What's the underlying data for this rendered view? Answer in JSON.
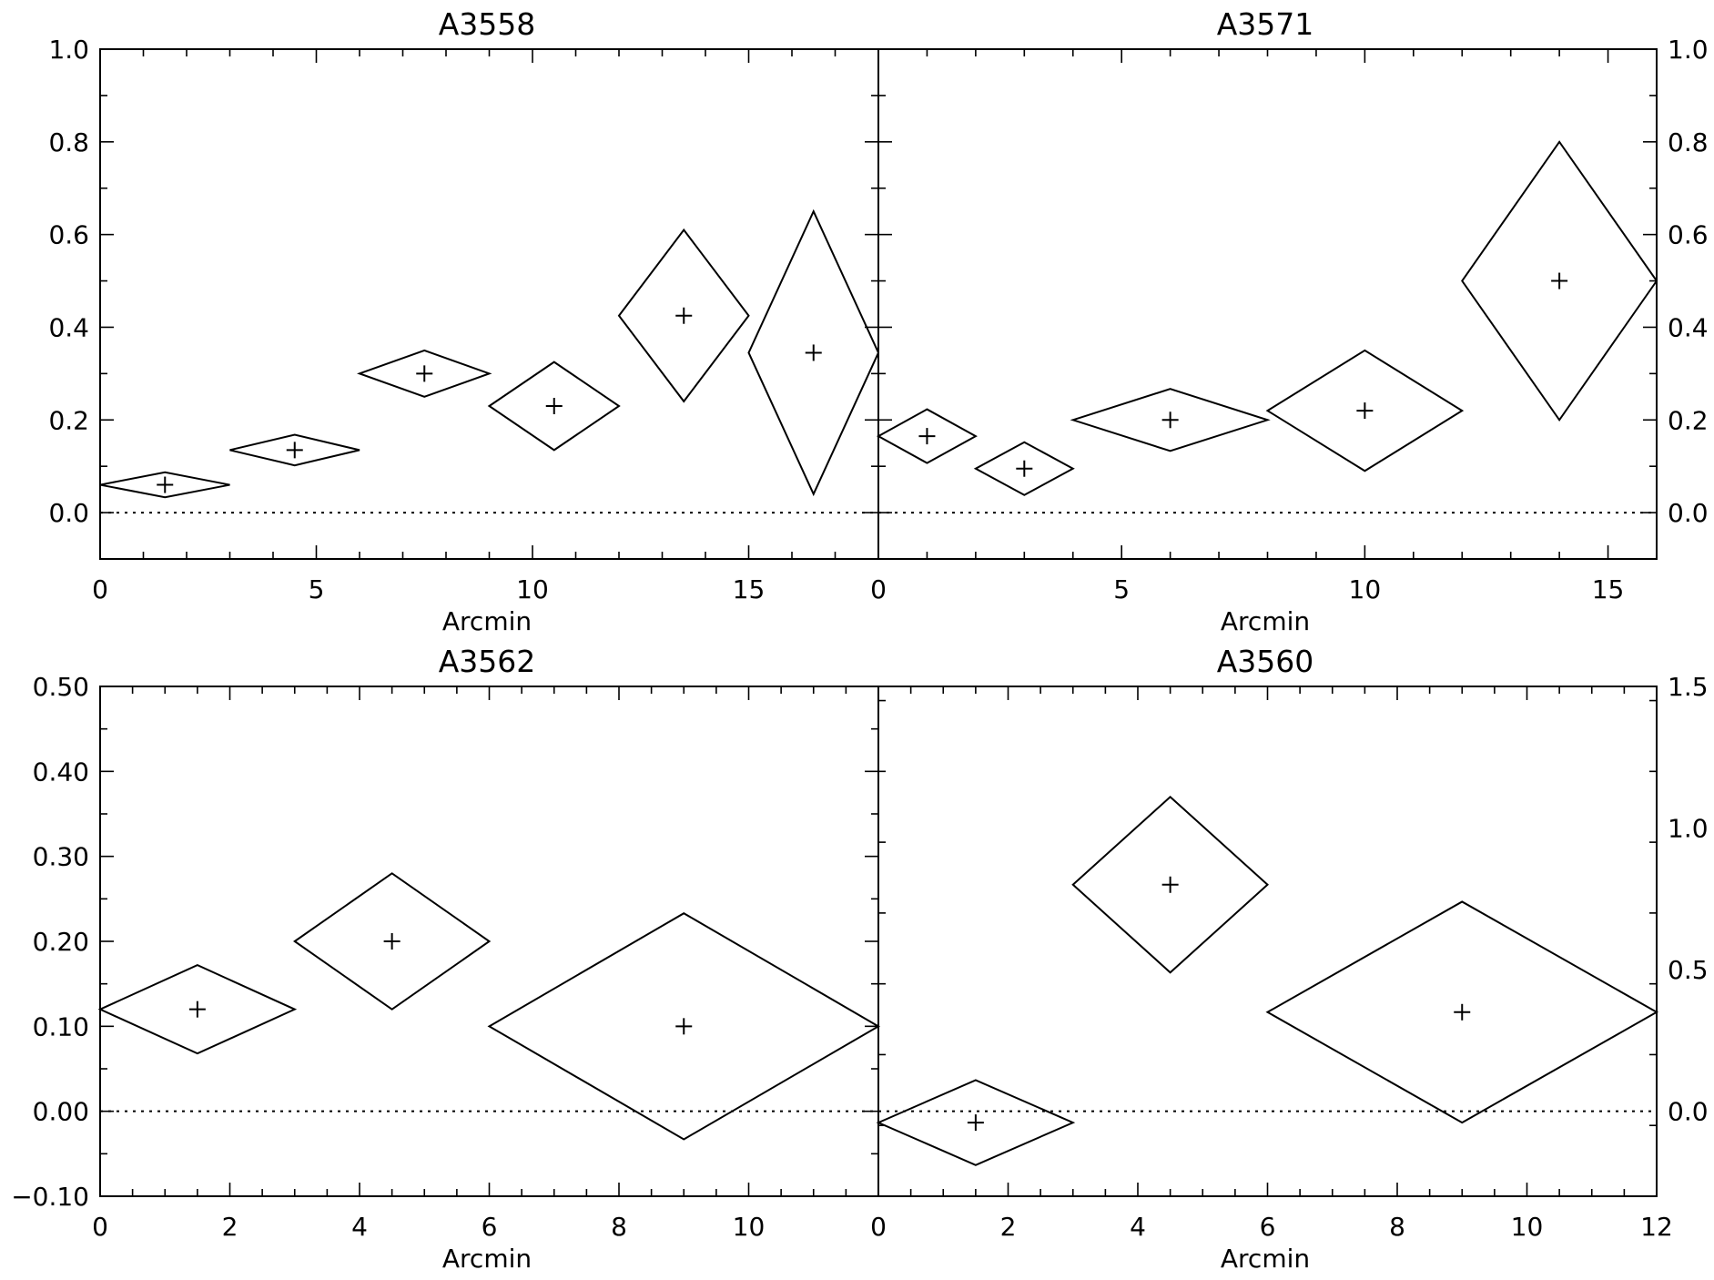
{
  "chart_data": [
    {
      "type": "scatter",
      "title": "A3558",
      "xlabel": "Arcmin",
      "xlim": [
        0,
        18
      ],
      "ylim": [
        -0.1,
        1.0
      ],
      "xticks": [
        0,
        5,
        10,
        15
      ],
      "xtick_labels": [
        "0",
        "5",
        "10",
        "15"
      ],
      "yticks": [
        0.0,
        0.2,
        0.4,
        0.6,
        0.8,
        1.0
      ],
      "ytick_labels": [
        "0.0",
        "0.2",
        "0.4",
        "0.6",
        "0.8",
        "1.0"
      ],
      "x_minor_step": 1,
      "y_minor_step": 0.1,
      "y_labels_side": "left",
      "zero_line": true,
      "points": [
        {
          "x": 1.5,
          "xerr": 1.5,
          "y": 0.06,
          "yerr": 0.027
        },
        {
          "x": 4.5,
          "xerr": 1.5,
          "y": 0.135,
          "yerr": 0.033
        },
        {
          "x": 7.5,
          "xerr": 1.5,
          "y": 0.3,
          "yerr": 0.05
        },
        {
          "x": 10.5,
          "xerr": 1.5,
          "y": 0.23,
          "yerr": 0.095
        },
        {
          "x": 13.5,
          "xerr": 1.5,
          "y": 0.425,
          "yerr": 0.185
        },
        {
          "x": 16.5,
          "xerr": 1.5,
          "y": 0.345,
          "yerr": 0.305
        }
      ]
    },
    {
      "type": "scatter",
      "title": "A3571",
      "xlabel": "Arcmin",
      "xlim": [
        0,
        16
      ],
      "ylim": [
        -0.1,
        1.0
      ],
      "xticks": [
        0,
        5,
        10,
        15
      ],
      "xtick_labels": [
        "0",
        "5",
        "10",
        "15"
      ],
      "yticks": [
        0.0,
        0.2,
        0.4,
        0.6,
        0.8,
        1.0
      ],
      "ytick_labels": [
        "0.0",
        "0.2",
        "0.4",
        "0.6",
        "0.8",
        "1.0"
      ],
      "x_minor_step": 1,
      "y_minor_step": 0.1,
      "y_labels_side": "right",
      "zero_line": true,
      "points": [
        {
          "x": 1.0,
          "xerr": 1.0,
          "y": 0.165,
          "yerr": 0.058
        },
        {
          "x": 3.0,
          "xerr": 1.0,
          "y": 0.095,
          "yerr": 0.057
        },
        {
          "x": 6.0,
          "xerr": 2.0,
          "y": 0.2,
          "yerr": 0.067
        },
        {
          "x": 10.0,
          "xerr": 2.0,
          "y": 0.22,
          "yerr": 0.13
        },
        {
          "x": 14.0,
          "xerr": 2.0,
          "y": 0.5,
          "yerr": 0.3
        }
      ]
    },
    {
      "type": "scatter",
      "title": "A3562",
      "xlabel": "Arcmin",
      "xlim": [
        0,
        12
      ],
      "ylim": [
        -0.1,
        0.5
      ],
      "xticks": [
        0,
        2,
        4,
        6,
        8,
        10
      ],
      "xtick_labels": [
        "0",
        "2",
        "4",
        "6",
        "8",
        "10"
      ],
      "yticks": [
        -0.1,
        0.0,
        0.1,
        0.2,
        0.3,
        0.4,
        0.5
      ],
      "ytick_labels": [
        "−0.10",
        "0.00",
        "0.10",
        "0.20",
        "0.30",
        "0.40",
        "0.50"
      ],
      "x_minor_step": 0.5,
      "y_minor_step": 0.05,
      "y_labels_side": "left",
      "zero_line": true,
      "points": [
        {
          "x": 1.5,
          "xerr": 1.5,
          "y": 0.12,
          "yerr": 0.052
        },
        {
          "x": 4.5,
          "xerr": 1.5,
          "y": 0.2,
          "yerr": 0.08
        },
        {
          "x": 9.0,
          "xerr": 3.0,
          "y": 0.1,
          "yerr": 0.133
        }
      ]
    },
    {
      "type": "scatter",
      "title": "A3560",
      "xlabel": "Arcmin",
      "xlim": [
        0,
        12
      ],
      "ylim": [
        -0.3,
        1.5
      ],
      "xticks": [
        0,
        2,
        4,
        6,
        8,
        10,
        12
      ],
      "xtick_labels": [
        "0",
        "2",
        "4",
        "6",
        "8",
        "10",
        "12"
      ],
      "yticks": [
        0.0,
        0.5,
        1.0,
        1.5
      ],
      "ytick_labels": [
        "0.0",
        "0.5",
        "1.0",
        "1.5"
      ],
      "x_minor_step": 0.5,
      "y_minor_step": 0.25,
      "y_labels_side": "right",
      "zero_line": true,
      "points": [
        {
          "x": 1.5,
          "xerr": 1.5,
          "y": -0.04,
          "yerr": 0.15
        },
        {
          "x": 4.5,
          "xerr": 1.5,
          "y": 0.8,
          "yerr": 0.31
        },
        {
          "x": 9.0,
          "xerr": 3.0,
          "y": 0.35,
          "yerr": 0.39
        }
      ]
    }
  ]
}
